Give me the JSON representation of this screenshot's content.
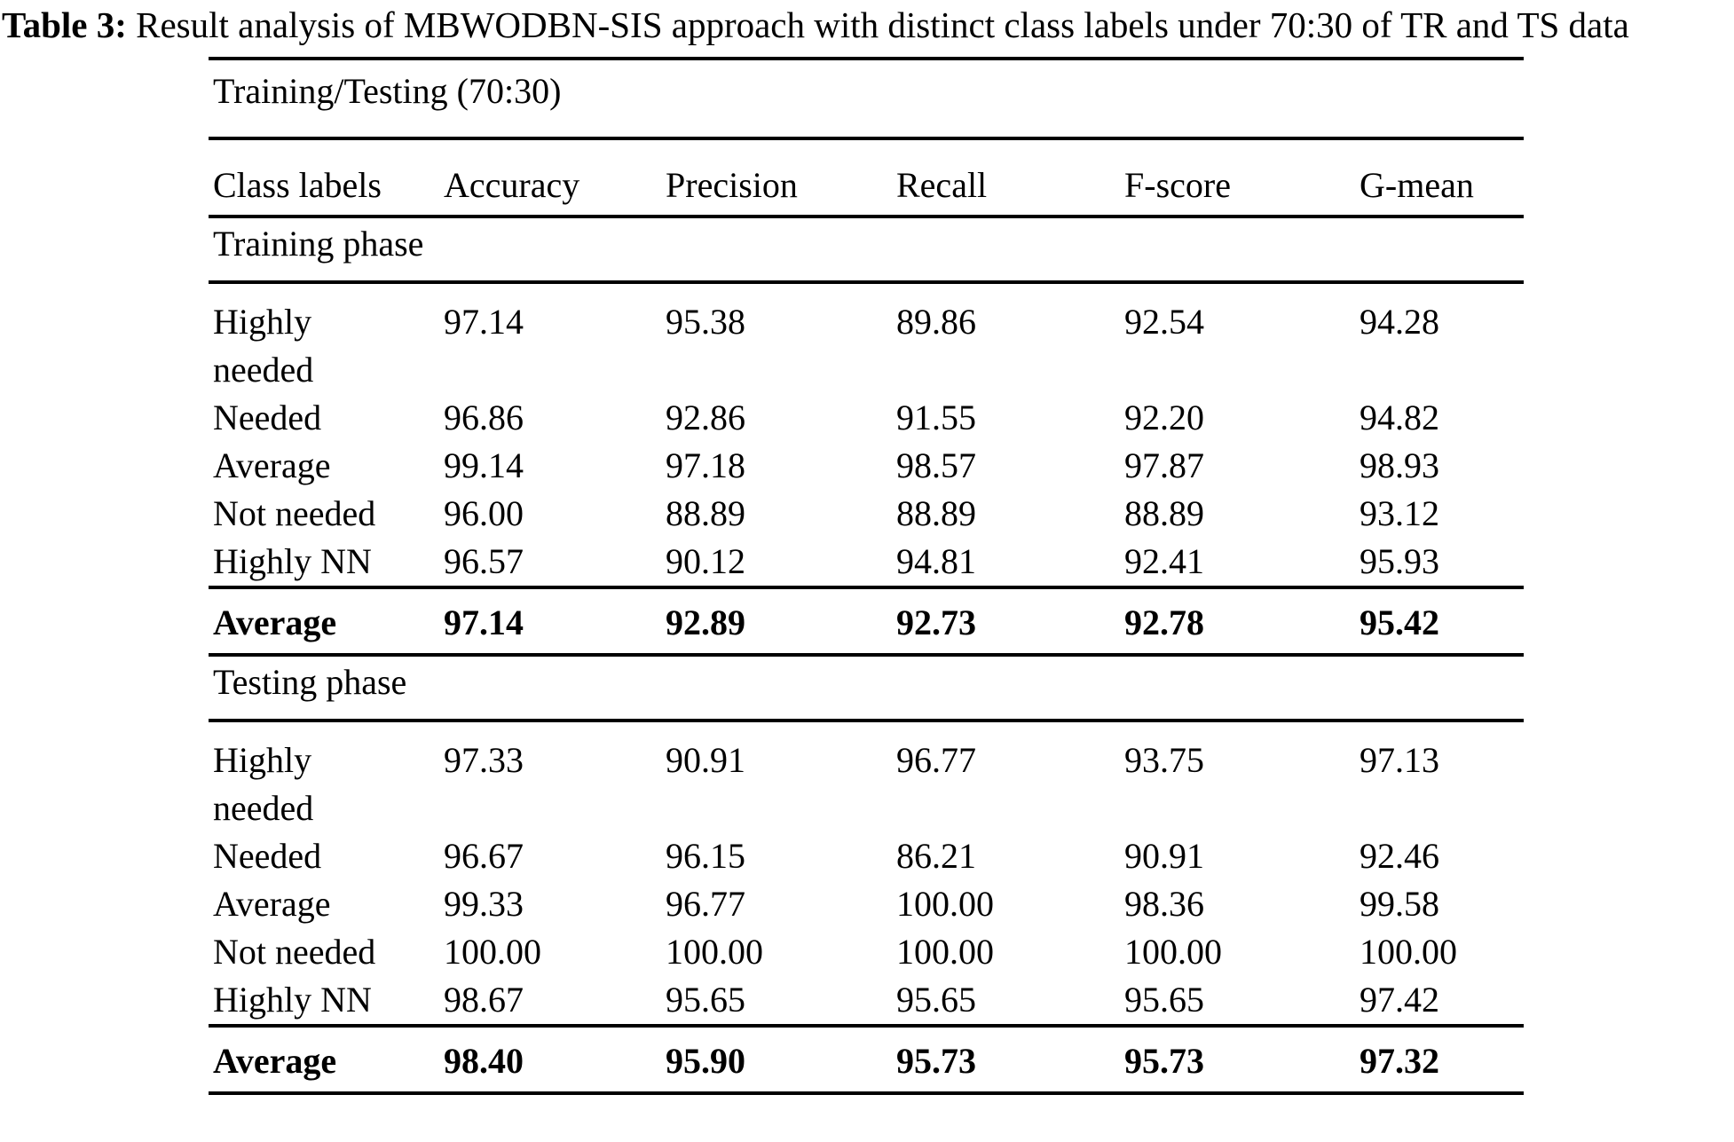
{
  "caption": {
    "label": "Table 3:",
    "text": " Result analysis of MBWODBN-SIS approach with distinct class labels under 70:30 of TR and TS data"
  },
  "table": {
    "title": "Training/Testing (70:30)",
    "columns": [
      "Class labels",
      "Accuracy",
      "Precision",
      "Recall",
      "F-score",
      "G-mean"
    ],
    "sections": [
      {
        "label": "Training phase",
        "rows": [
          [
            "Highly\nneeded",
            "97.14",
            "95.38",
            "89.86",
            "92.54",
            "94.28"
          ],
          [
            "Needed",
            "96.86",
            "92.86",
            "91.55",
            "92.20",
            "94.82"
          ],
          [
            "Average",
            "99.14",
            "97.18",
            "98.57",
            "97.87",
            "98.93"
          ],
          [
            "Not needed",
            "96.00",
            "88.89",
            "88.89",
            "88.89",
            "93.12"
          ],
          [
            "Highly NN",
            "96.57",
            "90.12",
            "94.81",
            "92.41",
            "95.93"
          ]
        ],
        "summary": [
          "Average",
          "97.14",
          "92.89",
          "92.73",
          "92.78",
          "95.42"
        ]
      },
      {
        "label": "Testing phase",
        "rows": [
          [
            "Highly\nneeded",
            "97.33",
            "90.91",
            "96.77",
            "93.75",
            "97.13"
          ],
          [
            "Needed",
            "96.67",
            "96.15",
            "86.21",
            "90.91",
            "92.46"
          ],
          [
            "Average",
            "99.33",
            "96.77",
            "100.00",
            "98.36",
            "99.58"
          ],
          [
            "Not needed",
            "100.00",
            "100.00",
            "100.00",
            "100.00",
            "100.00"
          ],
          [
            "Highly NN",
            "98.67",
            "95.65",
            "95.65",
            "95.65",
            "97.42"
          ]
        ],
        "summary": [
          "Average",
          "98.40",
          "95.90",
          "95.73",
          "95.73",
          "97.32"
        ]
      }
    ]
  }
}
